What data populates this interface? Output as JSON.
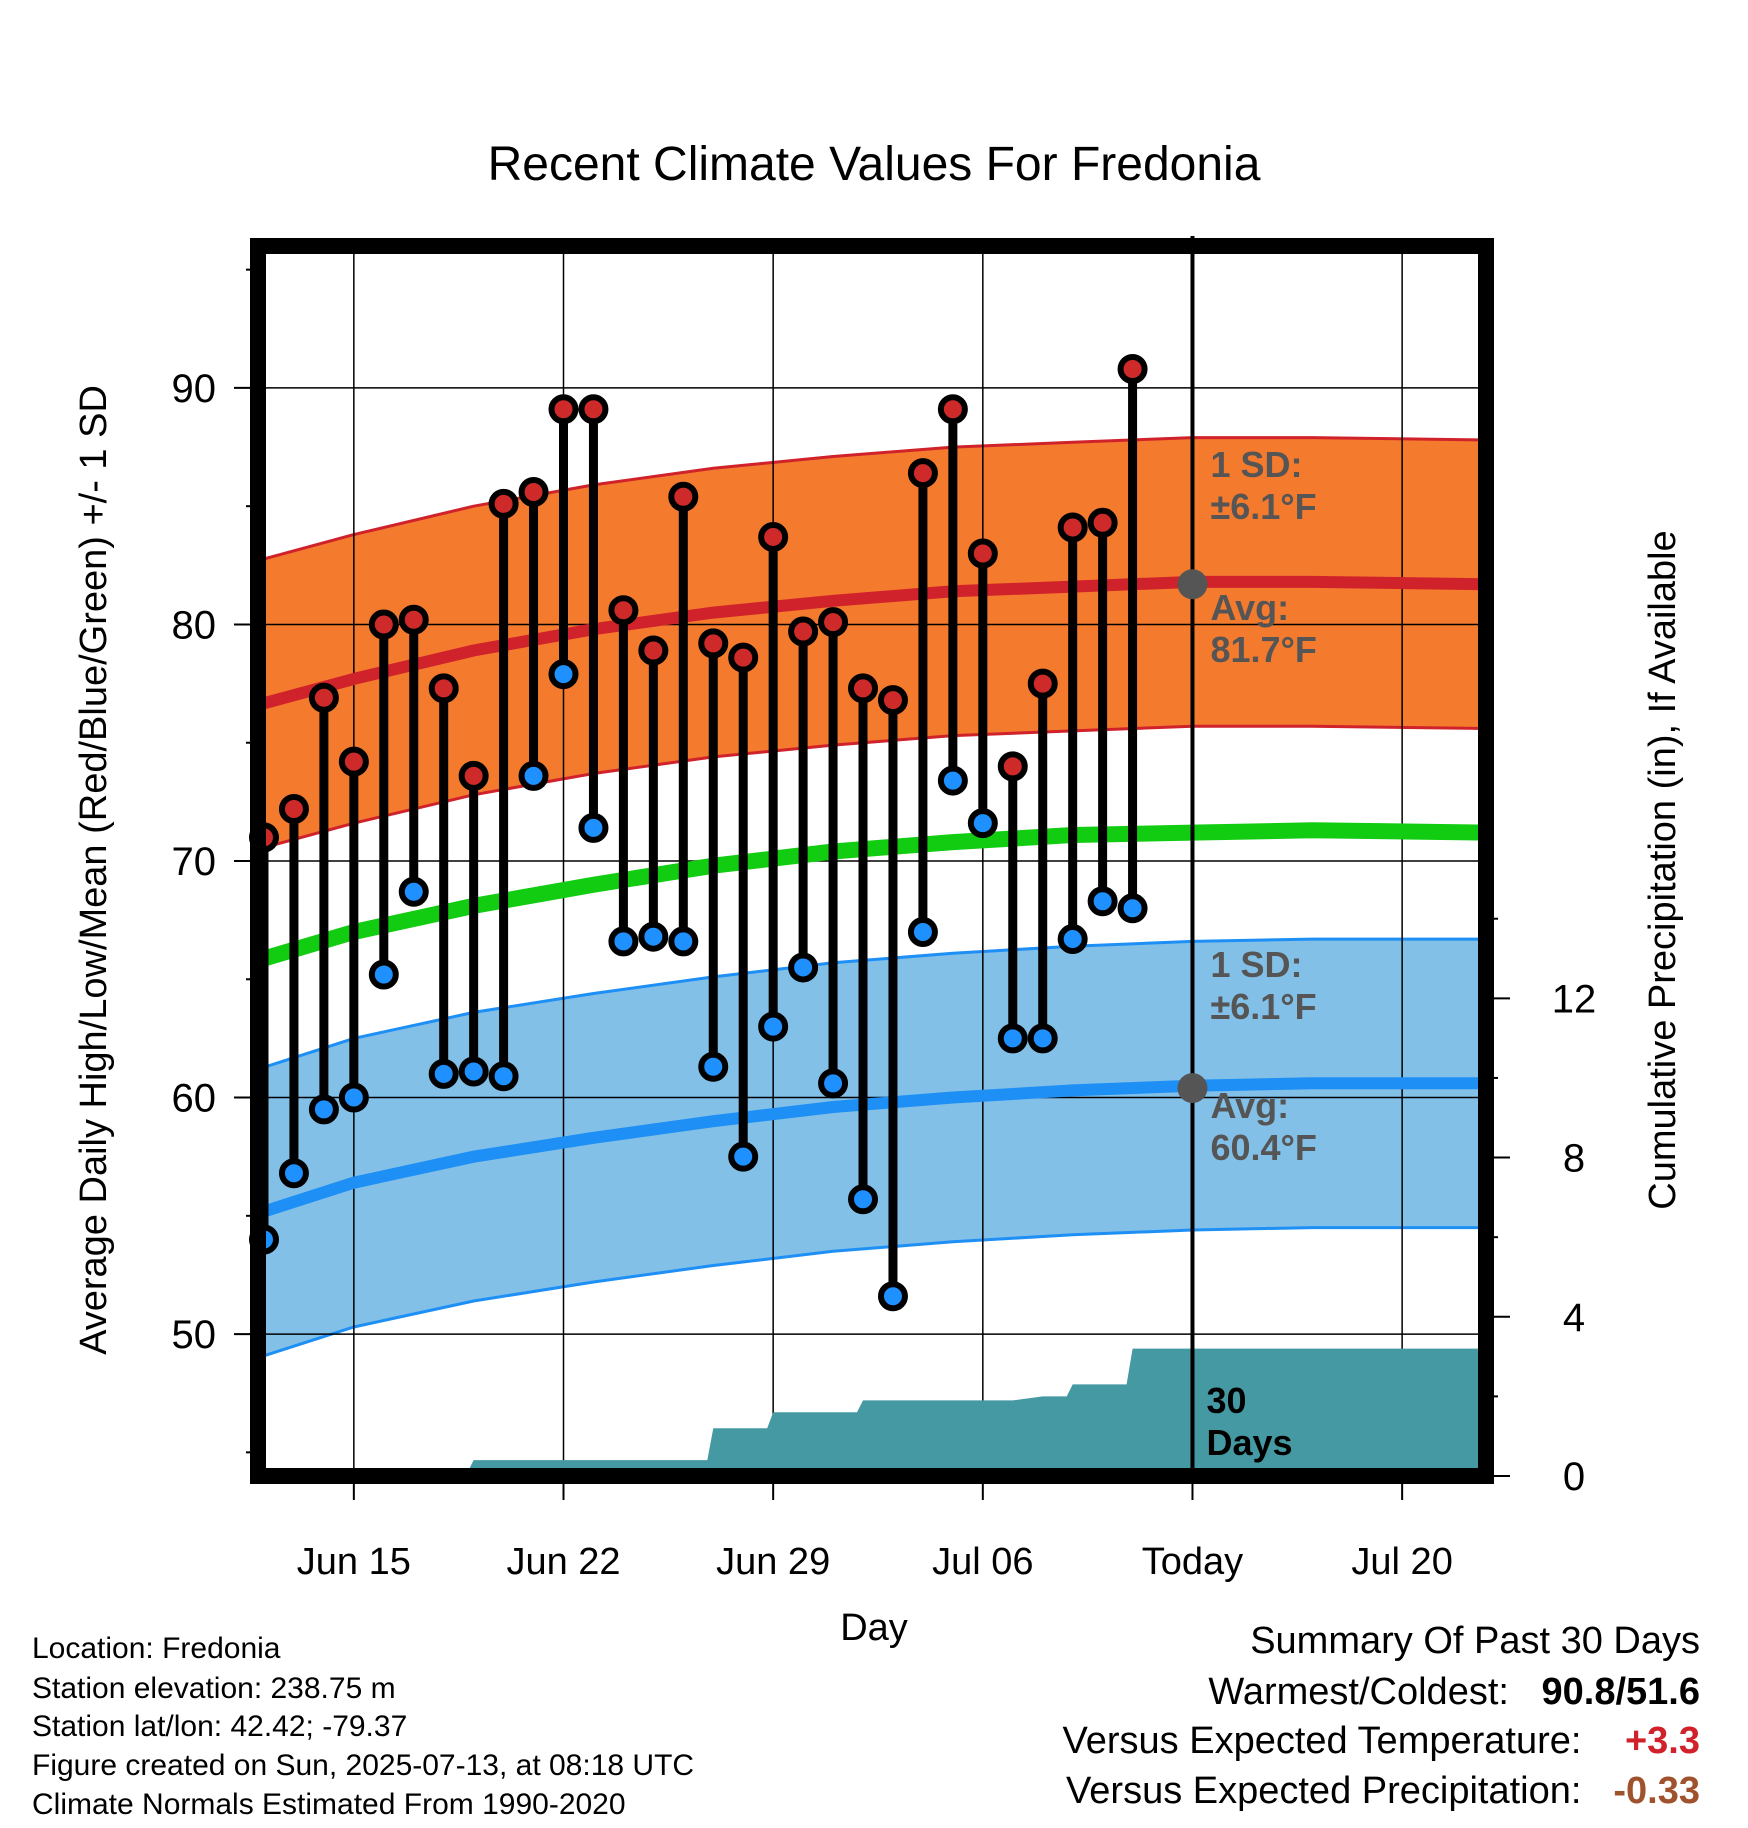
{
  "chart_data": {
    "type": "line",
    "title": "Recent Climate Values For Fredonia",
    "xlabel": "Day",
    "ylabel": "Average Daily High/Low/Mean (Red/Blue/Green) +/- 1 SD",
    "y2label": "Cumulative Precipitation (in), If Available",
    "ylim": [
      44,
      96
    ],
    "y2lim": [
      0,
      30.9
    ],
    "yticks": [
      50,
      60,
      70,
      80,
      90
    ],
    "y2ticks": [
      0,
      4,
      8,
      12
    ],
    "x_tick_labels": [
      {
        "day": 15,
        "label": "Jun 15"
      },
      {
        "day": 22,
        "label": "Jun 22"
      },
      {
        "day": 29,
        "label": "Jun 29"
      },
      {
        "day": 36,
        "label": "Jul 06"
      },
      {
        "day": 43,
        "label": "Today"
      },
      {
        "day": 50,
        "label": "Jul 20"
      }
    ],
    "xlim_days": [
      11.8,
      52.8
    ],
    "days": [
      12,
      13,
      14,
      15,
      16,
      17,
      18,
      19,
      20,
      21,
      22,
      23,
      24,
      25,
      26,
      27,
      28,
      29,
      30,
      31,
      32,
      33,
      34,
      35,
      36,
      37,
      38,
      39,
      40,
      41,
      42
    ],
    "dates": [
      "Jun 12",
      "Jun 13",
      "Jun 14",
      "Jun 15",
      "Jun 16",
      "Jun 17",
      "Jun 18",
      "Jun 19",
      "Jun 20",
      "Jun 21",
      "Jun 22",
      "Jun 23",
      "Jun 24",
      "Jun 25",
      "Jun 26",
      "Jun 27",
      "Jun 28",
      "Jun 29",
      "Jun 30",
      "Jul 01",
      "Jul 02",
      "Jul 03",
      "Jul 04",
      "Jul 05",
      "Jul 06",
      "Jul 07",
      "Jul 08",
      "Jul 09",
      "Jul 10",
      "Jul 11",
      "Jul 12"
    ],
    "daily_high": [
      71.0,
      72.2,
      76.9,
      74.2,
      80.0,
      80.2,
      77.3,
      73.6,
      85.1,
      85.6,
      89.1,
      89.1,
      80.6,
      78.9,
      85.4,
      79.2,
      78.6,
      83.7,
      79.7,
      80.1,
      77.3,
      76.8,
      86.4,
      89.1,
      83.0,
      74.0,
      77.5,
      84.1,
      84.3,
      90.8
    ],
    "daily_low": [
      54.0,
      56.8,
      59.5,
      60.0,
      65.2,
      68.7,
      61.0,
      61.1,
      60.9,
      73.6,
      77.9,
      71.4,
      66.6,
      66.8,
      66.6,
      61.3,
      57.5,
      63.0,
      65.5,
      60.6,
      55.7,
      51.6,
      67.0,
      73.4,
      71.6,
      62.5,
      62.5,
      66.7,
      68.3,
      68.0
    ],
    "daily_high_days": [
      12,
      13,
      14,
      15,
      16,
      17,
      18,
      19,
      20,
      21,
      22,
      23,
      24,
      25,
      26,
      27,
      28,
      29,
      30,
      31,
      32,
      33,
      34,
      35,
      36,
      37,
      38,
      39,
      40,
      41
    ],
    "normal_curve_days": [
      11.8,
      15,
      19,
      23,
      27,
      31,
      35,
      39,
      43,
      47,
      52.8
    ],
    "normal_high": [
      76.6,
      77.7,
      78.9,
      79.8,
      80.5,
      81.0,
      81.4,
      81.6,
      81.8,
      81.8,
      81.7
    ],
    "normal_low": [
      55.1,
      56.4,
      57.5,
      58.3,
      59.0,
      59.6,
      60.0,
      60.3,
      60.5,
      60.6,
      60.6
    ],
    "normal_mean": [
      65.8,
      67.0,
      68.1,
      69.0,
      69.8,
      70.4,
      70.8,
      71.1,
      71.2,
      71.3,
      71.2
    ],
    "sd_high": 6.1,
    "sd_low": 6.1,
    "precip_days": [
      12,
      17,
      18,
      18.8,
      19,
      24,
      25,
      26,
      26.8,
      27,
      28,
      28.8,
      29,
      31,
      31.8,
      32,
      34,
      35,
      36,
      37,
      38,
      38.8,
      39,
      40,
      40.8,
      41,
      52.8
    ],
    "cumulative_precip": [
      0,
      0,
      0.1,
      0.1,
      0.4,
      0.4,
      0.4,
      0.4,
      0.4,
      1.2,
      1.2,
      1.2,
      1.6,
      1.6,
      1.6,
      1.9,
      1.9,
      1.9,
      1.9,
      1.9,
      2.0,
      2.0,
      2.3,
      2.3,
      2.3,
      3.2,
      3.2
    ],
    "today_day": 43,
    "annotations": {
      "high_sd": "1 SD:\n±6.1°F",
      "high_avg": "Avg:\n81.7°F",
      "low_sd": "1 SD:\n±6.1°F",
      "low_avg": "Avg:\n60.4°F",
      "window": "30\nDays"
    },
    "today_marker": {
      "high_avg_value": 81.7,
      "low_avg_value": 60.4
    },
    "colors": {
      "high_band": "#f47a2e",
      "high_line": "#d0222a",
      "high_dot": "#cf2a2a",
      "low_band": "#82c0e8",
      "low_line": "#1e8ff5",
      "low_dot": "#1e90ff",
      "mean_line": "#11cc11",
      "precip": "#4599a2",
      "annotation_text": "#555555",
      "marker": "#555555"
    },
    "grid": true,
    "legend": "none"
  },
  "footer": {
    "location": "Location: Fredonia",
    "elevation": "Station elevation: 238.75 m",
    "latlon": "Station lat/lon: 42.42; -79.37",
    "created": "Figure created on Sun, 2025-07-13, at 08:18 UTC",
    "normals": "Climate Normals Estimated From 1990-2020"
  },
  "summary": {
    "title": "Summary Of Past 30 Days",
    "warm_cold_label": "Warmest/Coldest:",
    "warm_cold_value": "90.8/51.6",
    "temp_label": "Versus Expected Temperature:",
    "temp_value": "+3.3",
    "precip_label": "Versus Expected Precipitation:",
    "precip_value": "-0.33",
    "temp_color": "#d0222a",
    "precip_color": "#a0522d"
  }
}
